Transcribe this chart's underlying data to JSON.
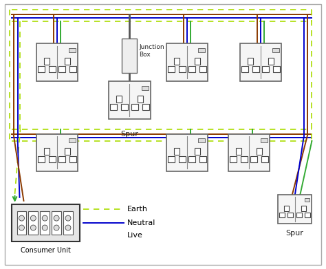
{
  "bg_color": "#ffffff",
  "border_color": "#cccccc",
  "C_LIVE": "#8B3A00",
  "C_NEUTRAL": "#0000CC",
  "C_EARTH": "#33AA33",
  "C_EARTH_D": "#AADD00",
  "labels": {
    "junction_box": "Junction\nBox",
    "spur_top": "Spur",
    "spur_bottom": "Spur",
    "earth": "Earth",
    "neutral": "Neutral",
    "live": "Live",
    "consumer_unit": "Consumer Unit"
  },
  "figsize": [
    4.74,
    3.91
  ],
  "dpi": 100
}
